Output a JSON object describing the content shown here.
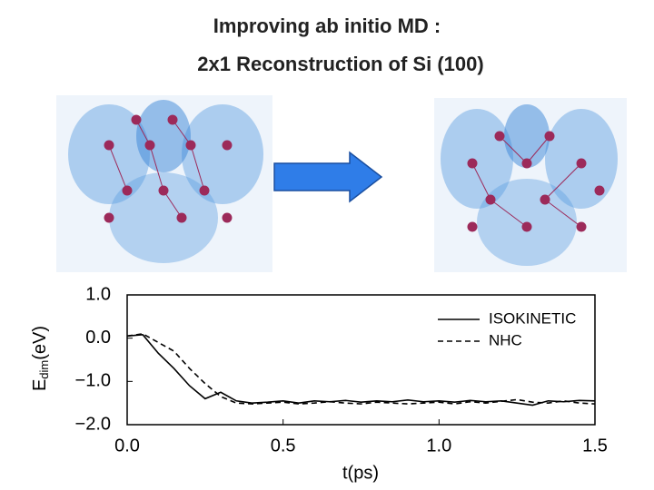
{
  "chart_data": {
    "type": "line",
    "title": "Improving ab initio MD :",
    "subtitle": "2x1 Reconstruction of Si (100)",
    "xlabel": "t(ps)",
    "ylabel": "E",
    "ylabel_subscript": "dim",
    "ylabel_unit": "(eV)",
    "x": [
      0,
      0.05,
      0.1,
      0.15,
      0.2,
      0.25,
      0.3,
      0.35,
      0.4,
      0.45,
      0.5,
      0.55,
      0.6,
      0.65,
      0.7,
      0.75,
      0.8,
      0.85,
      0.9,
      0.95,
      1.0,
      1.05,
      1.1,
      1.15,
      1.2,
      1.25,
      1.3,
      1.35,
      1.4,
      1.45,
      1.5
    ],
    "series": [
      {
        "name": "ISOKINETIC",
        "color": "#000000",
        "dash": false,
        "values": [
          0.05,
          0.08,
          -0.35,
          -0.7,
          -1.1,
          -1.4,
          -1.25,
          -1.45,
          -1.5,
          -1.48,
          -1.45,
          -1.5,
          -1.45,
          -1.47,
          -1.44,
          -1.48,
          -1.45,
          -1.47,
          -1.43,
          -1.47,
          -1.45,
          -1.48,
          -1.44,
          -1.47,
          -1.45,
          -1.5,
          -1.55,
          -1.45,
          -1.47,
          -1.44,
          -1.45
        ]
      },
      {
        "name": "NHC",
        "color": "#000000",
        "dash": true,
        "values": [
          0.05,
          0.1,
          -0.1,
          -0.3,
          -0.7,
          -1.05,
          -1.35,
          -1.5,
          -1.52,
          -1.5,
          -1.48,
          -1.52,
          -1.5,
          -1.47,
          -1.5,
          -1.52,
          -1.48,
          -1.5,
          -1.52,
          -1.5,
          -1.48,
          -1.52,
          -1.47,
          -1.5,
          -1.46,
          -1.42,
          -1.48,
          -1.5,
          -1.45,
          -1.5,
          -1.52
        ]
      }
    ],
    "xlim": [
      0,
      1.5
    ],
    "xticks": [
      {
        "value": 0,
        "label": "0.0"
      },
      0.5,
      {
        "value": 1,
        "label": "1.0"
      },
      1.5
    ],
    "ylim": [
      -2,
      1
    ],
    "yticks": [
      {
        "value": 1,
        "label": "1.0"
      },
      {
        "value": 0,
        "label": "0.0"
      },
      {
        "value": -1,
        "label": "−1.0"
      },
      {
        "value": -2,
        "label": "−2.0"
      }
    ],
    "legend": "upper-right"
  }
}
